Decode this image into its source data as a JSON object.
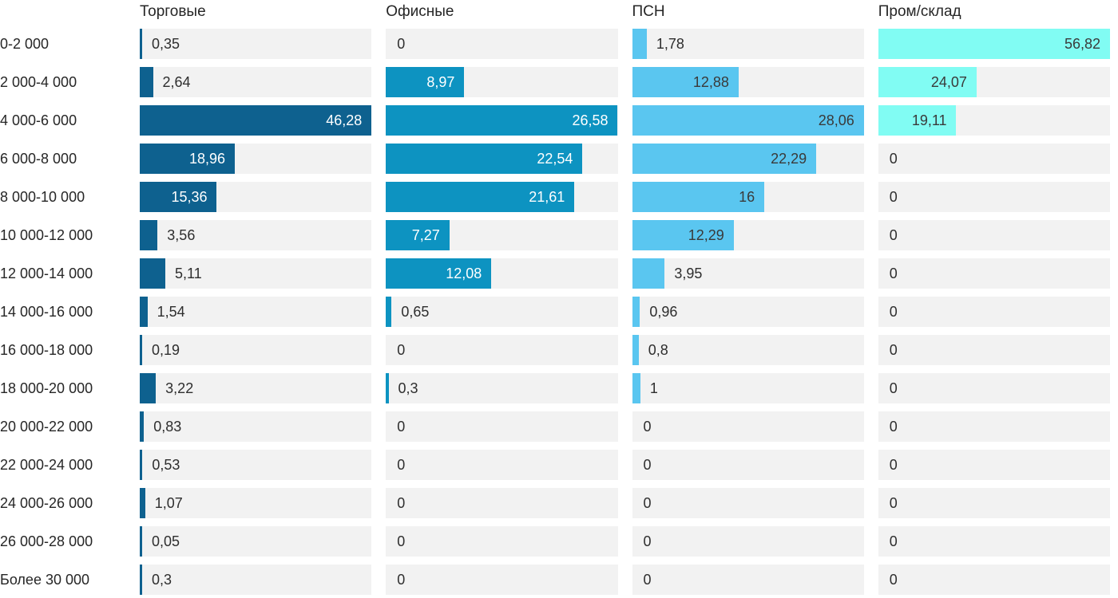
{
  "chart_data": {
    "type": "bar",
    "orientation": "horizontal",
    "title": "",
    "xlabel": "",
    "ylabel": "",
    "legend_position": "top-column-headers",
    "grid": false,
    "scaling": "each column scaled independently so its max value fills full track width",
    "track_color": "#f2f2f2",
    "text_color": "#2e2e2e",
    "label_color": "#262626",
    "value_decimal_separator": ",",
    "categories": [
      "0-2 000",
      "2 000-4 000",
      "4 000-6 000",
      "6 000-8 000",
      "8 000-10 000",
      "10 000-12 000",
      "12 000-14 000",
      "14 000-16 000",
      "16 000-18 000",
      "18 000-20 000",
      "20 000-22 000",
      "22 000-24 000",
      "24 000-26 000",
      "26 000-28 000",
      "Более 30 000"
    ],
    "series": [
      {
        "name": "Торговые",
        "color": "#0e618f",
        "label_color_on_bar": "#ffffff",
        "values": [
          0.35,
          2.64,
          46.28,
          18.96,
          15.36,
          3.56,
          5.11,
          1.54,
          0.19,
          3.22,
          0.83,
          0.53,
          1.07,
          0.05,
          0.3
        ]
      },
      {
        "name": "Офисные",
        "color": "#0d93c1",
        "label_color_on_bar": "#ffffff",
        "values": [
          0,
          8.97,
          26.58,
          22.54,
          21.61,
          7.27,
          12.08,
          0.65,
          0,
          0.3,
          0,
          0,
          0,
          0,
          0
        ]
      },
      {
        "name": "ПСН",
        "color": "#5ac6f0",
        "label_color_on_bar": "#3a3a3a",
        "values": [
          1.78,
          12.88,
          28.06,
          22.29,
          16,
          12.29,
          3.95,
          0.96,
          0.8,
          1,
          0,
          0,
          0,
          0,
          0
        ]
      },
      {
        "name": "Пром/склад",
        "color": "#81fcf3",
        "label_color_on_bar": "#3a3a3a",
        "values": [
          56.82,
          24.07,
          19.11,
          0,
          0,
          0,
          0,
          0,
          0,
          0,
          0,
          0,
          0,
          0,
          0
        ]
      }
    ]
  }
}
